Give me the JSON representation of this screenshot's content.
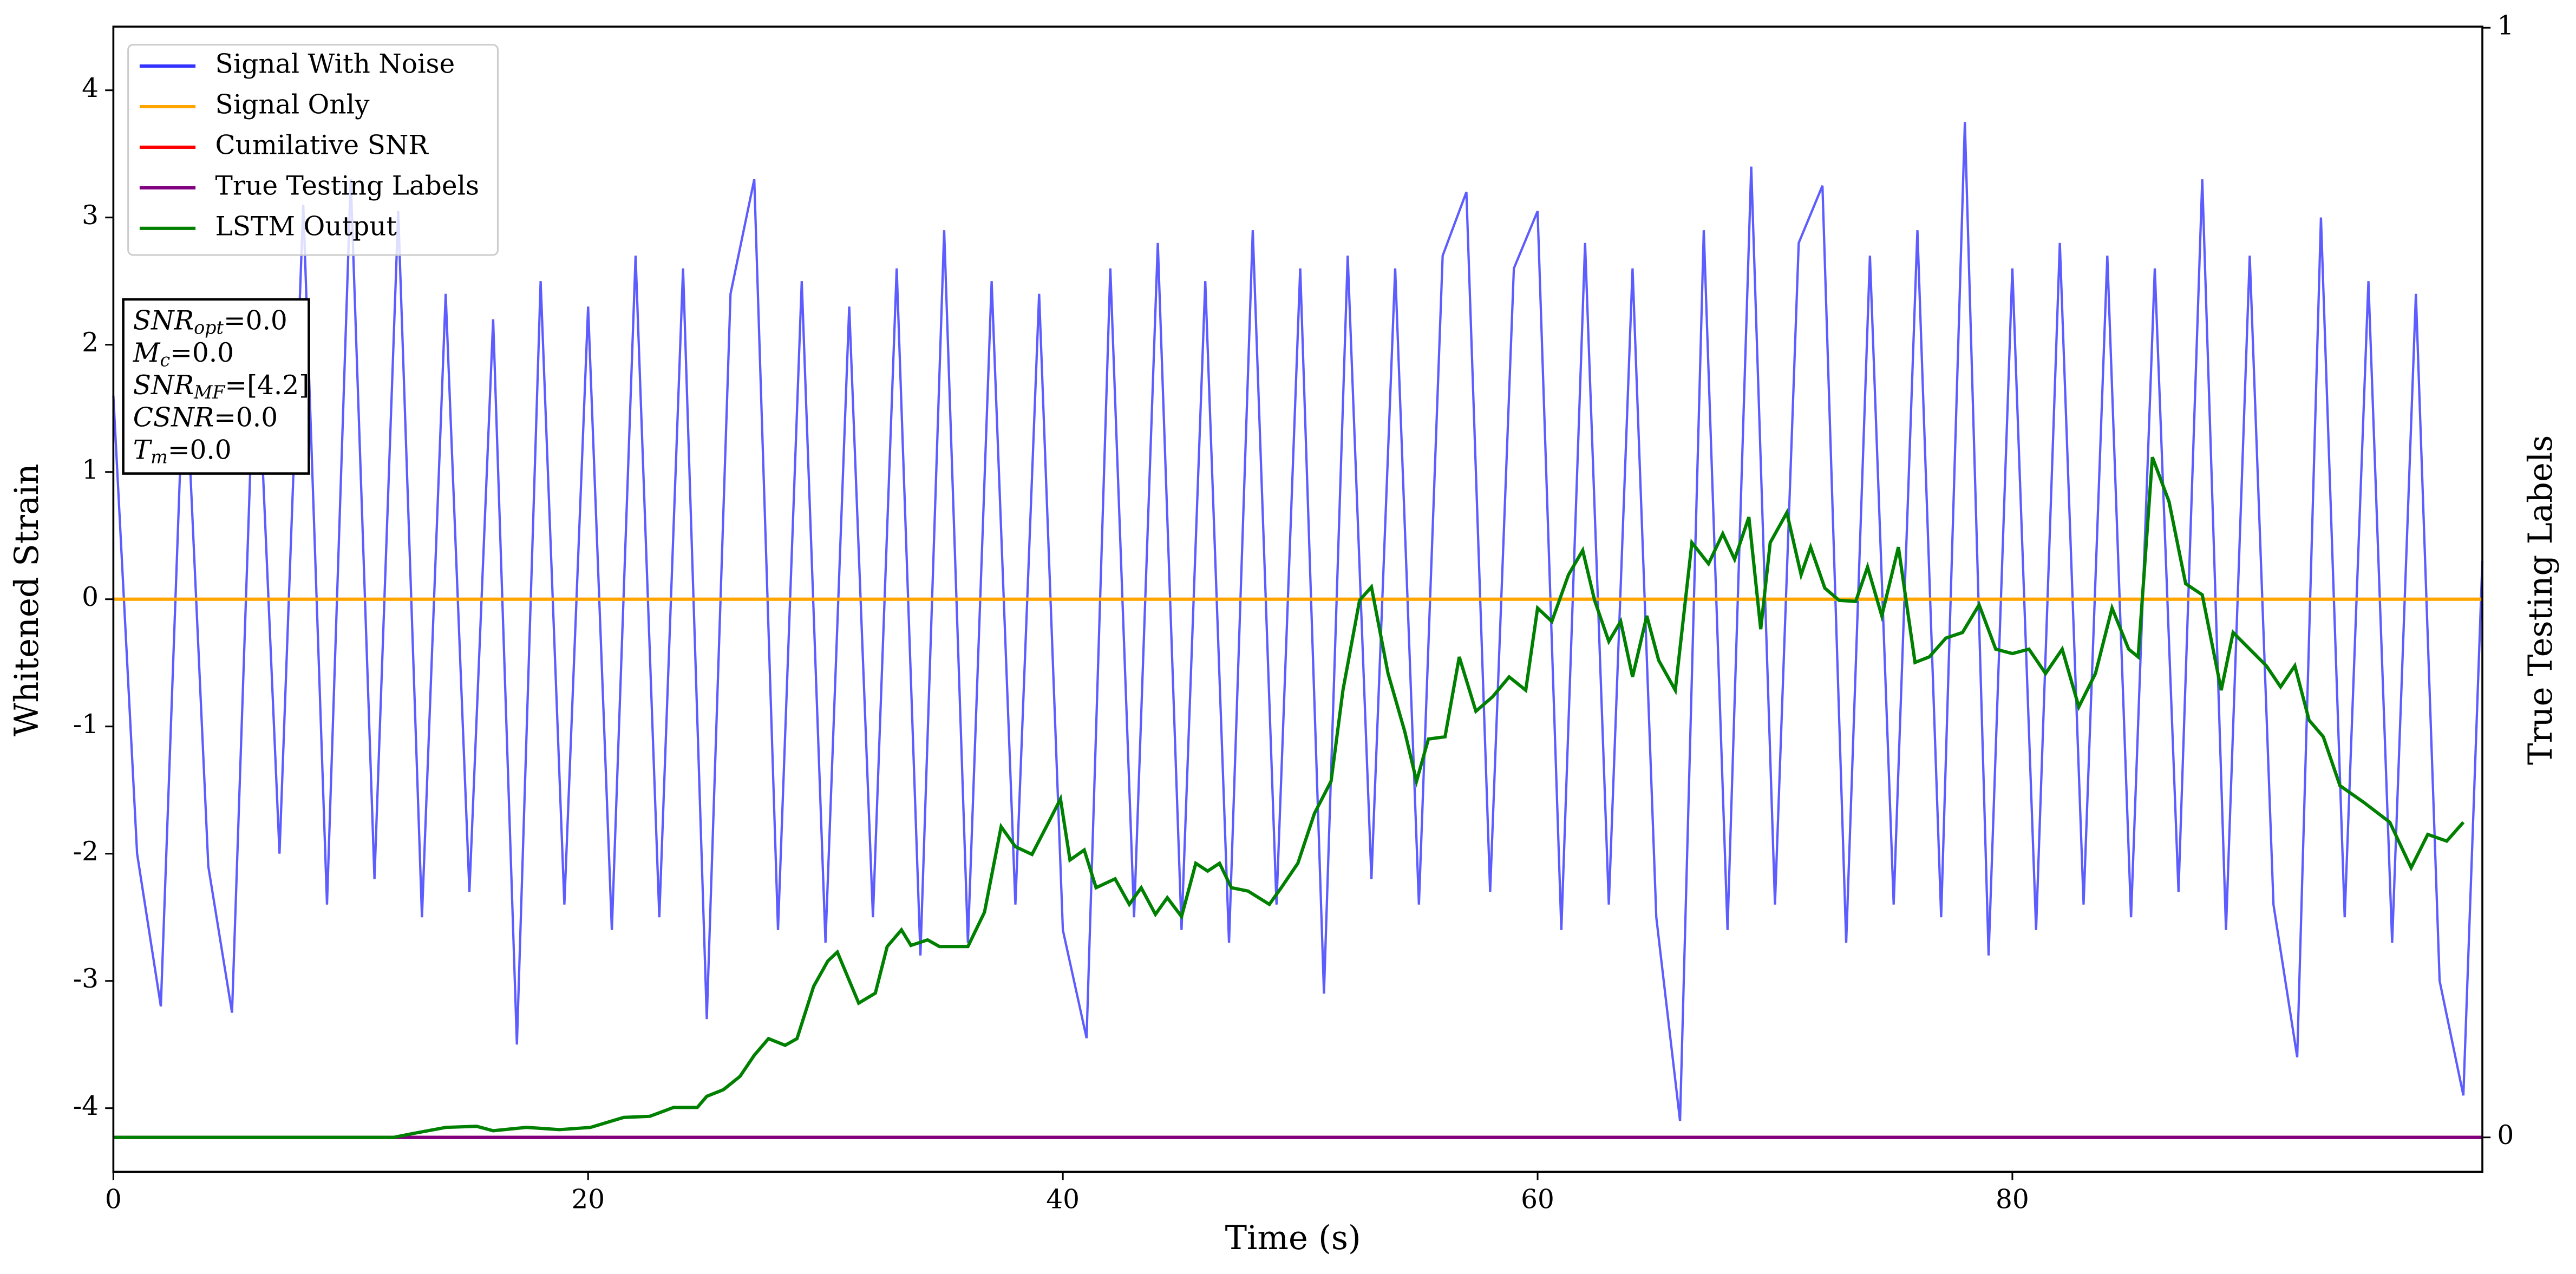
{
  "chart_data": {
    "type": "line",
    "xlabel": "Time (s)",
    "ylabel": "Whitened Strain",
    "y2label": "True Testing Labels",
    "xlim": [
      0,
      99.8
    ],
    "ylim": [
      -4.5,
      4.5
    ],
    "y2lim": [
      -0.031,
      1.001
    ],
    "xticks": [
      0,
      20,
      40,
      60,
      80
    ],
    "yticks": [
      -4,
      -3,
      -2,
      -1,
      0,
      1,
      2,
      3,
      4
    ],
    "y2ticks": [
      0,
      1
    ],
    "legend": "upper left",
    "annotation": [
      {
        "symbol": "SNR",
        "sub": "opt",
        "text": "=0.0"
      },
      {
        "symbol": "M",
        "sub": "c",
        "text": "=0.0"
      },
      {
        "symbol": "SNR",
        "sub": "MF",
        "text": "=[4.2]"
      },
      {
        "symbol": "CSNR",
        "sub": null,
        "text": "=0.0"
      },
      {
        "symbol": "T",
        "sub": "m",
        "text": "=0.0"
      }
    ],
    "series": [
      {
        "name": "Signal With Noise",
        "color": "#3333ff",
        "axis": "y",
        "x": [
          0,
          1,
          2,
          3,
          4,
          5,
          6,
          7,
          8,
          9,
          10,
          11,
          12,
          13,
          14,
          15,
          16,
          17,
          18,
          19,
          20,
          21,
          22,
          23,
          24,
          25,
          26,
          27,
          28,
          29,
          30,
          31,
          32,
          33,
          34,
          35,
          36,
          37,
          38,
          39,
          40,
          41,
          42,
          43,
          44,
          45,
          46,
          47,
          48,
          49,
          50,
          51,
          52,
          53,
          54,
          55,
          56,
          57,
          58,
          59,
          60,
          61,
          62,
          63,
          64,
          65,
          66,
          67,
          68,
          69,
          70,
          71,
          72,
          73,
          74,
          75,
          76,
          77,
          78,
          79,
          80,
          81,
          82,
          83,
          84,
          85,
          86,
          87,
          88,
          89,
          90,
          91,
          92,
          93,
          94,
          95,
          96,
          97,
          98,
          99,
          99.8
        ],
        "values": [
          1.6,
          -2.0,
          -3.2,
          2.0,
          -2.1,
          -3.25,
          2.3,
          -2.0,
          3.1,
          -2.4,
          3.3,
          -2.2,
          3.05,
          -2.5,
          2.4,
          -2.3,
          2.2,
          -3.5,
          2.5,
          -2.4,
          2.3,
          -2.6,
          2.7,
          -2.5,
          2.6,
          -3.3,
          2.4,
          3.3,
          -2.6,
          2.5,
          -2.7,
          2.3,
          -2.5,
          2.6,
          -2.8,
          2.9,
          -2.7,
          2.5,
          -2.4,
          2.4,
          -2.6,
          -3.45,
          2.6,
          -2.5,
          2.8,
          -2.6,
          2.5,
          -2.7,
          2.9,
          -2.4,
          2.6,
          -3.1,
          2.7,
          -2.2,
          2.6,
          -2.4,
          2.7,
          3.2,
          -2.3,
          2.6,
          3.05,
          -2.6,
          2.8,
          -2.4,
          2.6,
          -2.5,
          -4.1,
          2.9,
          -2.6,
          3.4,
          -2.4,
          2.8,
          3.25,
          -2.7,
          2.7,
          -2.4,
          2.9,
          -2.5,
          3.75,
          -2.8,
          2.6,
          -2.6,
          2.8,
          -2.4,
          2.7,
          -2.5,
          2.6,
          -2.3,
          3.3,
          -2.6,
          2.7,
          -2.4,
          -3.6,
          3.0,
          -2.5,
          2.5,
          -2.7,
          2.4,
          -3.0,
          -3.9,
          0.3
        ]
      },
      {
        "name": "Signal Only",
        "color": "#ffa500",
        "axis": "y",
        "x": [
          0,
          99.8
        ],
        "values": [
          0,
          0
        ]
      },
      {
        "name": "Cumilative SNR",
        "color": "#ff0000",
        "axis": "y2",
        "x": [
          0,
          99.8
        ],
        "values": [
          0,
          0
        ]
      },
      {
        "name": "True Testing Labels",
        "color": "#800080",
        "axis": "y2",
        "x": [
          0,
          99.8
        ],
        "values": [
          0,
          0
        ]
      },
      {
        "name": "LSTM Output",
        "color": "#008000",
        "axis": "y2",
        "x": [
          0,
          11.8,
          12.5,
          14,
          15.3,
          16,
          17.4,
          18.8,
          20.1,
          21.5,
          22.6,
          23.6,
          24.6,
          25,
          25.7,
          26.4,
          27,
          27.6,
          28.3,
          28.8,
          29.5,
          30.1,
          30.5,
          31.4,
          32.1,
          32.6,
          33.2,
          33.6,
          34.3,
          34.8,
          36,
          36.7,
          37.4,
          38,
          38.7,
          39.4,
          39.9,
          40.3,
          40.9,
          41.4,
          42.2,
          42.8,
          43.3,
          43.9,
          44.4,
          45,
          45.6,
          46.1,
          46.6,
          47.1,
          47.8,
          48.7,
          49.2,
          49.9,
          50.6,
          51.3,
          51.8,
          52.5,
          53,
          53.7,
          54.4,
          54.9,
          55.4,
          56.1,
          56.7,
          57.4,
          58.1,
          58.8,
          59.5,
          60,
          60.6,
          61.3,
          61.9,
          62.4,
          63,
          63.5,
          64,
          64.6,
          65.1,
          65.8,
          66.5,
          67.2,
          67.8,
          68.3,
          68.9,
          69.4,
          69.8,
          70.5,
          71.1,
          71.5,
          72.1,
          72.7,
          73.4,
          73.9,
          74.5,
          75.2,
          75.9,
          76.5,
          77.2,
          77.9,
          78.6,
          79.3,
          80,
          80.7,
          81.4,
          82.1,
          82.8,
          83.5,
          84.2,
          84.9,
          85.3,
          85.9,
          86.6,
          87.3,
          88,
          88.8,
          89.3,
          90,
          90.7,
          91.3,
          91.9,
          92.5,
          93.1,
          93.8,
          94.8,
          95.9,
          96.8,
          97.5,
          98.3,
          99
        ],
        "values": [
          0,
          0,
          0.003,
          0.009,
          0.01,
          0.006,
          0.009,
          0.007,
          0.009,
          0.018,
          0.019,
          0.027,
          0.027,
          0.037,
          0.043,
          0.055,
          0.074,
          0.089,
          0.083,
          0.089,
          0.136,
          0.159,
          0.167,
          0.121,
          0.13,
          0.172,
          0.187,
          0.173,
          0.178,
          0.172,
          0.172,
          0.203,
          0.28,
          0.262,
          0.255,
          0.284,
          0.305,
          0.25,
          0.259,
          0.225,
          0.233,
          0.21,
          0.225,
          0.201,
          0.216,
          0.199,
          0.247,
          0.24,
          0.247,
          0.225,
          0.222,
          0.21,
          0.225,
          0.247,
          0.292,
          0.321,
          0.403,
          0.484,
          0.496,
          0.418,
          0.366,
          0.321,
          0.359,
          0.361,
          0.433,
          0.384,
          0.397,
          0.415,
          0.403,
          0.477,
          0.465,
          0.507,
          0.529,
          0.484,
          0.447,
          0.465,
          0.415,
          0.47,
          0.43,
          0.403,
          0.536,
          0.517,
          0.544,
          0.521,
          0.559,
          0.458,
          0.536,
          0.563,
          0.507,
          0.532,
          0.495,
          0.484,
          0.483,
          0.514,
          0.47,
          0.532,
          0.428,
          0.433,
          0.45,
          0.455,
          0.48,
          0.44,
          0.436,
          0.44,
          0.418,
          0.44,
          0.388,
          0.418,
          0.477,
          0.44,
          0.433,
          0.613,
          0.573,
          0.499,
          0.489,
          0.403,
          0.455,
          0.44,
          0.425,
          0.406,
          0.425,
          0.376,
          0.361,
          0.317,
          0.302,
          0.284,
          0.243,
          0.273,
          0.267,
          0.284
        ]
      }
    ]
  }
}
